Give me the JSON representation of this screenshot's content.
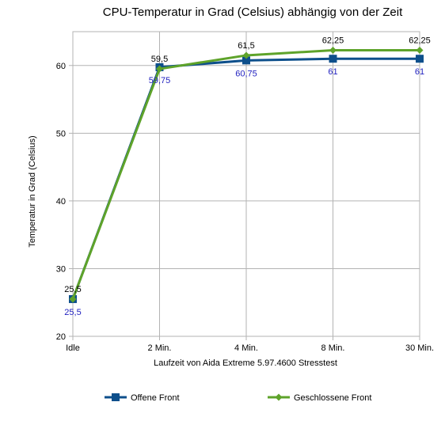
{
  "chart_data": {
    "type": "line",
    "title": "CPU-Temperatur in Grad (Celsius) abhängig von der Zeit",
    "xlabel": "Laufzeit von Aida Extreme 5.97.4600 Stresstest",
    "ylabel": "Temperatur in Grad (Celsius)",
    "categories": [
      "Idle",
      "2 Min.",
      "4 Min.",
      "8 Min.",
      "30 Min."
    ],
    "ylim": [
      20,
      65
    ],
    "yticks": [
      20,
      30,
      40,
      50,
      60
    ],
    "grid": true,
    "legend_position": "bottom",
    "series": [
      {
        "name": "Offene Front",
        "values": [
          25.5,
          59.75,
          60.75,
          61,
          61
        ],
        "labels": [
          "25,5",
          "59,75",
          "60,75",
          "61",
          "61"
        ],
        "color": "#0d4f8b",
        "label_color": "#1f1fbf",
        "marker": "square"
      },
      {
        "name": "Geschlossene Front",
        "values": [
          25.5,
          59.5,
          61.5,
          62.25,
          62.25
        ],
        "labels": [
          "25,5",
          "59,5",
          "61,5",
          "62,25",
          "62,25"
        ],
        "color": "#5ea32a",
        "label_color": "#000000",
        "marker": "diamond"
      }
    ]
  }
}
